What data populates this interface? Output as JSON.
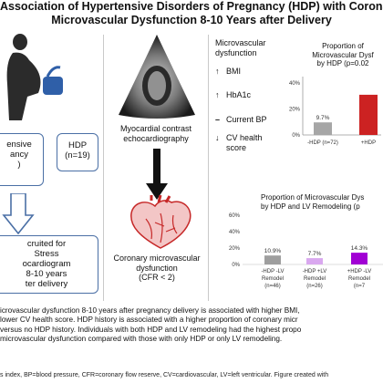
{
  "title_line1": "Association of Hypertensive Disorders of Pregnancy (HDP) with Coronar",
  "title_line2": "Microvascular Dysfunction 8-10 Years after Delivery",
  "left": {
    "box_nohdp_lines": [
      "ensive",
      "ancy",
      ")"
    ],
    "box_hdp_lines": [
      "HDP",
      "(n=19)"
    ],
    "recruited_lines": [
      "cruited for",
      "Stress",
      "ocardiogram",
      "8-10 years",
      "ter delivery"
    ]
  },
  "echo": {
    "label_lines": [
      "Myocardial contrast",
      "echocardiography"
    ]
  },
  "heart": {
    "label_lines": [
      "Coronary microvascular",
      "dysfunction",
      "(CFR < 2)"
    ]
  },
  "predictors": {
    "header_lines": [
      "Microvascular",
      "dysfunction"
    ],
    "items": [
      {
        "arrow": "up",
        "label": "BMI"
      },
      {
        "arrow": "up",
        "label": "HbA1c"
      },
      {
        "arrow": "dash",
        "label": "Current BP"
      },
      {
        "arrow": "down",
        "label": "CV health score"
      }
    ],
    "cv_line2": "score"
  },
  "chart_top": {
    "title_lines": [
      "Proportion of",
      "Microvascular Dysf",
      "by HDP (p=0.02"
    ],
    "yticks": [
      "0%",
      "20%",
      "40%"
    ]
  },
  "chart_bottom": {
    "title_lines": [
      "Proportion of Microvascular Dys",
      "by HDP and LV Remodeling (p"
    ],
    "yticks": [
      "0%",
      "20%",
      "40%",
      "60%"
    ]
  },
  "chart_data": [
    {
      "type": "bar",
      "title": "Proportion of Microvascular Dysf by HDP (p=0.02",
      "categories": [
        "-HDP (n=72)",
        "+HDP"
      ],
      "values": [
        9.7,
        31
      ],
      "value_labels": [
        "9.7%",
        ""
      ],
      "ylim": [
        0,
        45
      ],
      "colors": [
        "#a6a6a6",
        "#cc2222"
      ]
    },
    {
      "type": "bar",
      "title": "Proportion of Microvascular Dys by HDP and LV Remodeling (p",
      "categories": [
        "-HDP -LV Remodel (n=46)",
        "-HDP +LV Remodel (n=26)",
        "+HDP -LV Remodel (n=7)"
      ],
      "category_lines": [
        [
          "-HDP -LV",
          "Remodel",
          "(n=46)"
        ],
        [
          "-HDP +LV",
          "Remodel",
          "(n=26)"
        ],
        [
          "+HDP -LV",
          "Remodel",
          "(n=7"
        ]
      ],
      "values": [
        10.9,
        7.7,
        14.3
      ],
      "value_labels": [
        "10.9%",
        "7.7%",
        "14.3%"
      ],
      "ylim": [
        0,
        60
      ],
      "colors": [
        "#9e9e9e",
        "#d9a8ef",
        "#a100d4"
      ]
    }
  ],
  "bottom_lines": [
    "icrovascular dysfunction 8-10 years after pregnancy delivery is associated with higher BMI,",
    "lower CV health score. HDP history is associated with a higher proportion of coronary micr",
    "versus no HDP history. Individuals with both HDP and LV remodeling had the highest propo",
    "microvascular dysfunction compared with those with only HDP or only LV remodeling."
  ],
  "abbreviations": "s index, BP=blood pressure, CFR=coronary flow reserve, CV=cardiovascular, LV=left ventricular. Figure created with"
}
